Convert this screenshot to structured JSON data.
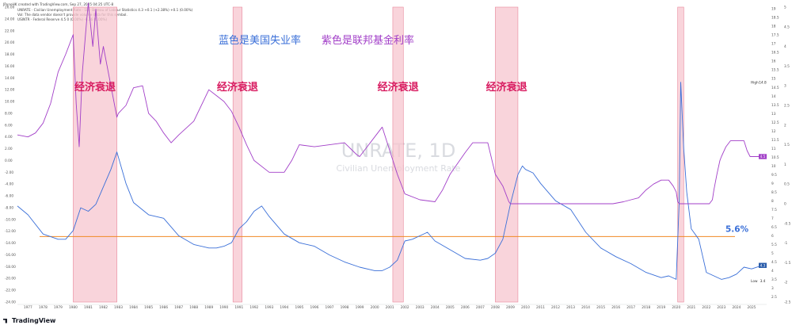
{
  "header": {
    "author_line": "JPuneHK created with TradingView.com, Sep 27, 2025 04:25 UTC-8",
    "series1_line": "UNRATE · Civilian Unemployment Rate · 1D · Bureau of Labour Statistics  4.3  +0.1 (+2.38%)  +0.1 (0.00%)",
    "note_line": "Vol: The data vendor doesn't provide volume data for this symbol.",
    "series2_line": "USINTR · Federal Reserve  4.5  0 (0.00%)  -0.36 (0.00%)"
  },
  "brand": "TradingView",
  "colors": {
    "unemployment": "#3a6fd8",
    "fed_rate": "#a23fc8",
    "recession_fill": "#f7c5cf",
    "recession_stroke": "#e8879b",
    "annotation": "#d81b60",
    "hline": "#f08a24"
  },
  "chart_data": {
    "type": "line",
    "watermark_title": "UNRATE, 1D",
    "watermark_subtitle": "Civilian Unemployment Rate",
    "legend_labels": [
      {
        "text": "蓝色是美国失业率",
        "color": "#3a6fd8"
      },
      {
        "text": "紫色是联邦基金利率",
        "color": "#a23fc8"
      }
    ],
    "recession_label": "经济衰退",
    "hline_label": "5.6%",
    "hline_value_left": -12.9,
    "x_range": [
      1976.3,
      2026.0
    ],
    "x_ticks": [
      "1977",
      "1978",
      "1979",
      "1980",
      "1981",
      "1982",
      "1983",
      "1984",
      "1985",
      "1986",
      "1987",
      "1988",
      "1989",
      "1990",
      "1991",
      "1992",
      "1993",
      "1994",
      "1995",
      "1996",
      "1997",
      "1998",
      "1999",
      "2000",
      "2001",
      "2002",
      "2003",
      "2004",
      "2005",
      "2006",
      "2007",
      "2008",
      "2009",
      "2010",
      "2011",
      "2012",
      "2013",
      "2014",
      "2015",
      "2016",
      "2017",
      "2018",
      "2019",
      "2020",
      "2021",
      "2022",
      "2023",
      "2024",
      "2025"
    ],
    "left_axis": {
      "range": [
        -24,
        26
      ],
      "ticks": [
        "26.00",
        "24.00",
        "22.00",
        "20.00",
        "18.00",
        "16.00",
        "14.00",
        "12.00",
        "10.00",
        "8.00",
        "6.00",
        "4.00",
        "2.00",
        "0.00",
        "-2.00",
        "-4.00",
        "-6.00",
        "-8.00",
        "-10.00",
        "-12.00",
        "-14.00",
        "-16.00",
        "-18.00",
        "-20.00",
        "-22.00",
        "-24.00"
      ]
    },
    "right_axis_outer": {
      "range": [
        -2.5,
        5
      ],
      "ticks": [
        "5",
        "4.5",
        "4",
        "3.5",
        "3",
        "2.5",
        "2",
        "1.5",
        "1",
        "0.5",
        "0",
        "-0.5",
        "-1",
        "-1.5",
        "-2",
        "-2.5"
      ]
    },
    "right_axis_inner": {
      "range": [
        2.2,
        19.1
      ],
      "ticks": [
        "19",
        "18.5",
        "18",
        "17.5",
        "17",
        "16.5",
        "16",
        "15.5",
        "15",
        "14.5",
        "14",
        "13.5",
        "13",
        "12.5",
        "12",
        "11.5",
        "11",
        "10.5",
        "10",
        "9.5",
        "9",
        "8.5",
        "8",
        "7.5",
        "7",
        "6.5",
        "6",
        "5.5",
        "5",
        "4.5",
        "4",
        "3.5",
        "3",
        "2.5"
      ]
    },
    "price_labels": [
      {
        "text": "High",
        "value": "14.8"
      },
      {
        "text": "Low",
        "value": "3.4"
      },
      {
        "text": "4.5",
        "value": "4.5"
      },
      {
        "text": "4.3",
        "value": "4.3"
      }
    ],
    "recessions": [
      {
        "start": 1980.0,
        "end": 1982.9,
        "show_label": true
      },
      {
        "start": 1990.6,
        "end": 1991.2,
        "show_label": true
      },
      {
        "start": 2001.2,
        "end": 2001.9,
        "show_label": true
      },
      {
        "start": 2008.0,
        "end": 2009.5,
        "show_label": true
      },
      {
        "start": 2020.1,
        "end": 2020.5,
        "show_label": false
      }
    ],
    "series": [
      {
        "name": "蓝色是美国失业率",
        "axis": "inner",
        "x": [
          1976.3,
          1977.0,
          1978.0,
          1979.0,
          1979.5,
          1980.0,
          1980.5,
          1981.0,
          1981.5,
          1982.0,
          1982.5,
          1982.9,
          1983.5,
          1984.0,
          1985.0,
          1986.0,
          1987.0,
          1988.0,
          1989.0,
          1989.5,
          1990.0,
          1990.5,
          1991.0,
          1991.5,
          1992.0,
          1992.5,
          1993.0,
          1994.0,
          1995.0,
          1996.0,
          1997.0,
          1998.0,
          1999.0,
          2000.0,
          2000.5,
          2001.0,
          2001.5,
          2002.0,
          2002.5,
          2003.0,
          2003.5,
          2004.0,
          2005.0,
          2006.0,
          2007.0,
          2007.5,
          2008.0,
          2008.5,
          2009.0,
          2009.5,
          2009.8,
          2010.0,
          2010.5,
          2011.0,
          2012.0,
          2013.0,
          2014.0,
          2015.0,
          2016.0,
          2017.0,
          2018.0,
          2019.0,
          2019.5,
          2020.0,
          2020.2,
          2020.3,
          2020.5,
          2020.7,
          2021.0,
          2021.5,
          2022.0,
          2023.0,
          2023.5,
          2024.0,
          2024.5,
          2025.0,
          2025.7
        ],
        "values": [
          7.7,
          7.2,
          6.1,
          5.8,
          5.8,
          6.3,
          7.6,
          7.4,
          7.8,
          8.8,
          9.8,
          10.8,
          9.0,
          7.9,
          7.2,
          7.0,
          6.0,
          5.5,
          5.3,
          5.3,
          5.4,
          5.6,
          6.4,
          6.8,
          7.4,
          7.7,
          7.1,
          6.1,
          5.6,
          5.4,
          4.9,
          4.5,
          4.2,
          4.0,
          4.0,
          4.2,
          4.6,
          5.7,
          5.8,
          6.0,
          6.2,
          5.7,
          5.2,
          4.7,
          4.6,
          4.7,
          5.0,
          5.8,
          7.8,
          9.5,
          10.0,
          9.8,
          9.6,
          9.0,
          8.0,
          7.5,
          6.2,
          5.3,
          4.8,
          4.4,
          3.9,
          3.6,
          3.7,
          3.5,
          8.0,
          14.8,
          11.0,
          8.5,
          6.4,
          5.8,
          3.9,
          3.5,
          3.6,
          3.8,
          4.2,
          4.1,
          4.3
        ]
      },
      {
        "name": "紫色是联邦基金利率",
        "axis": "outer",
        "x": [
          1976.3,
          1977.0,
          1977.5,
          1978.0,
          1978.5,
          1979.0,
          1979.5,
          1980.0,
          1980.2,
          1980.4,
          1980.6,
          1980.9,
          1981.0,
          1981.3,
          1981.5,
          1981.8,
          1982.0,
          1982.5,
          1982.9,
          1983.0,
          1983.5,
          1984.0,
          1984.6,
          1985.0,
          1985.5,
          1986.0,
          1986.5,
          1987.0,
          1988.0,
          1989.0,
          1989.5,
          1990.0,
          1990.5,
          1991.0,
          1991.5,
          1992.0,
          1993.0,
          1994.0,
          1994.5,
          1995.0,
          1996.0,
          1997.0,
          1998.0,
          1998.8,
          1999.0,
          1999.5,
          2000.0,
          2000.5,
          2001.0,
          2001.5,
          2001.9,
          2002.0,
          2003.0,
          2004.0,
          2004.5,
          2005.0,
          2006.0,
          2006.5,
          2007.0,
          2007.5,
          2008.0,
          2008.5,
          2008.9,
          2009.0,
          2015.8,
          2016.5,
          2017.0,
          2017.5,
          2018.0,
          2018.5,
          2019.0,
          2019.5,
          2019.8,
          2020.0,
          2020.1,
          2020.2,
          2022.2,
          2022.4,
          2022.5,
          2022.7,
          2022.9,
          2023.0,
          2023.3,
          2023.6,
          2024.5,
          2024.7,
          2024.9,
          2025.7
        ],
        "values": [
          1.75,
          1.7,
          1.8,
          2.05,
          2.55,
          3.35,
          3.8,
          4.3,
          2.55,
          1.45,
          3.3,
          4.7,
          5.1,
          4.0,
          4.95,
          3.55,
          4.0,
          3.0,
          2.2,
          2.3,
          2.5,
          2.95,
          3.0,
          2.3,
          2.1,
          1.8,
          1.55,
          1.75,
          2.1,
          2.9,
          2.75,
          2.6,
          2.35,
          1.95,
          1.5,
          1.1,
          0.8,
          0.8,
          1.1,
          1.5,
          1.45,
          1.5,
          1.55,
          1.25,
          1.2,
          1.45,
          1.7,
          1.95,
          1.35,
          0.75,
          0.35,
          0.25,
          0.1,
          0.05,
          0.35,
          0.75,
          1.3,
          1.55,
          1.55,
          1.55,
          0.75,
          0.45,
          0.05,
          0.0,
          0.0,
          0.05,
          0.1,
          0.15,
          0.35,
          0.5,
          0.6,
          0.6,
          0.45,
          0.3,
          0.05,
          0.0,
          0.0,
          0.1,
          0.35,
          0.75,
          1.1,
          1.2,
          1.45,
          1.6,
          1.6,
          1.35,
          1.2,
          1.2
        ]
      }
    ]
  }
}
